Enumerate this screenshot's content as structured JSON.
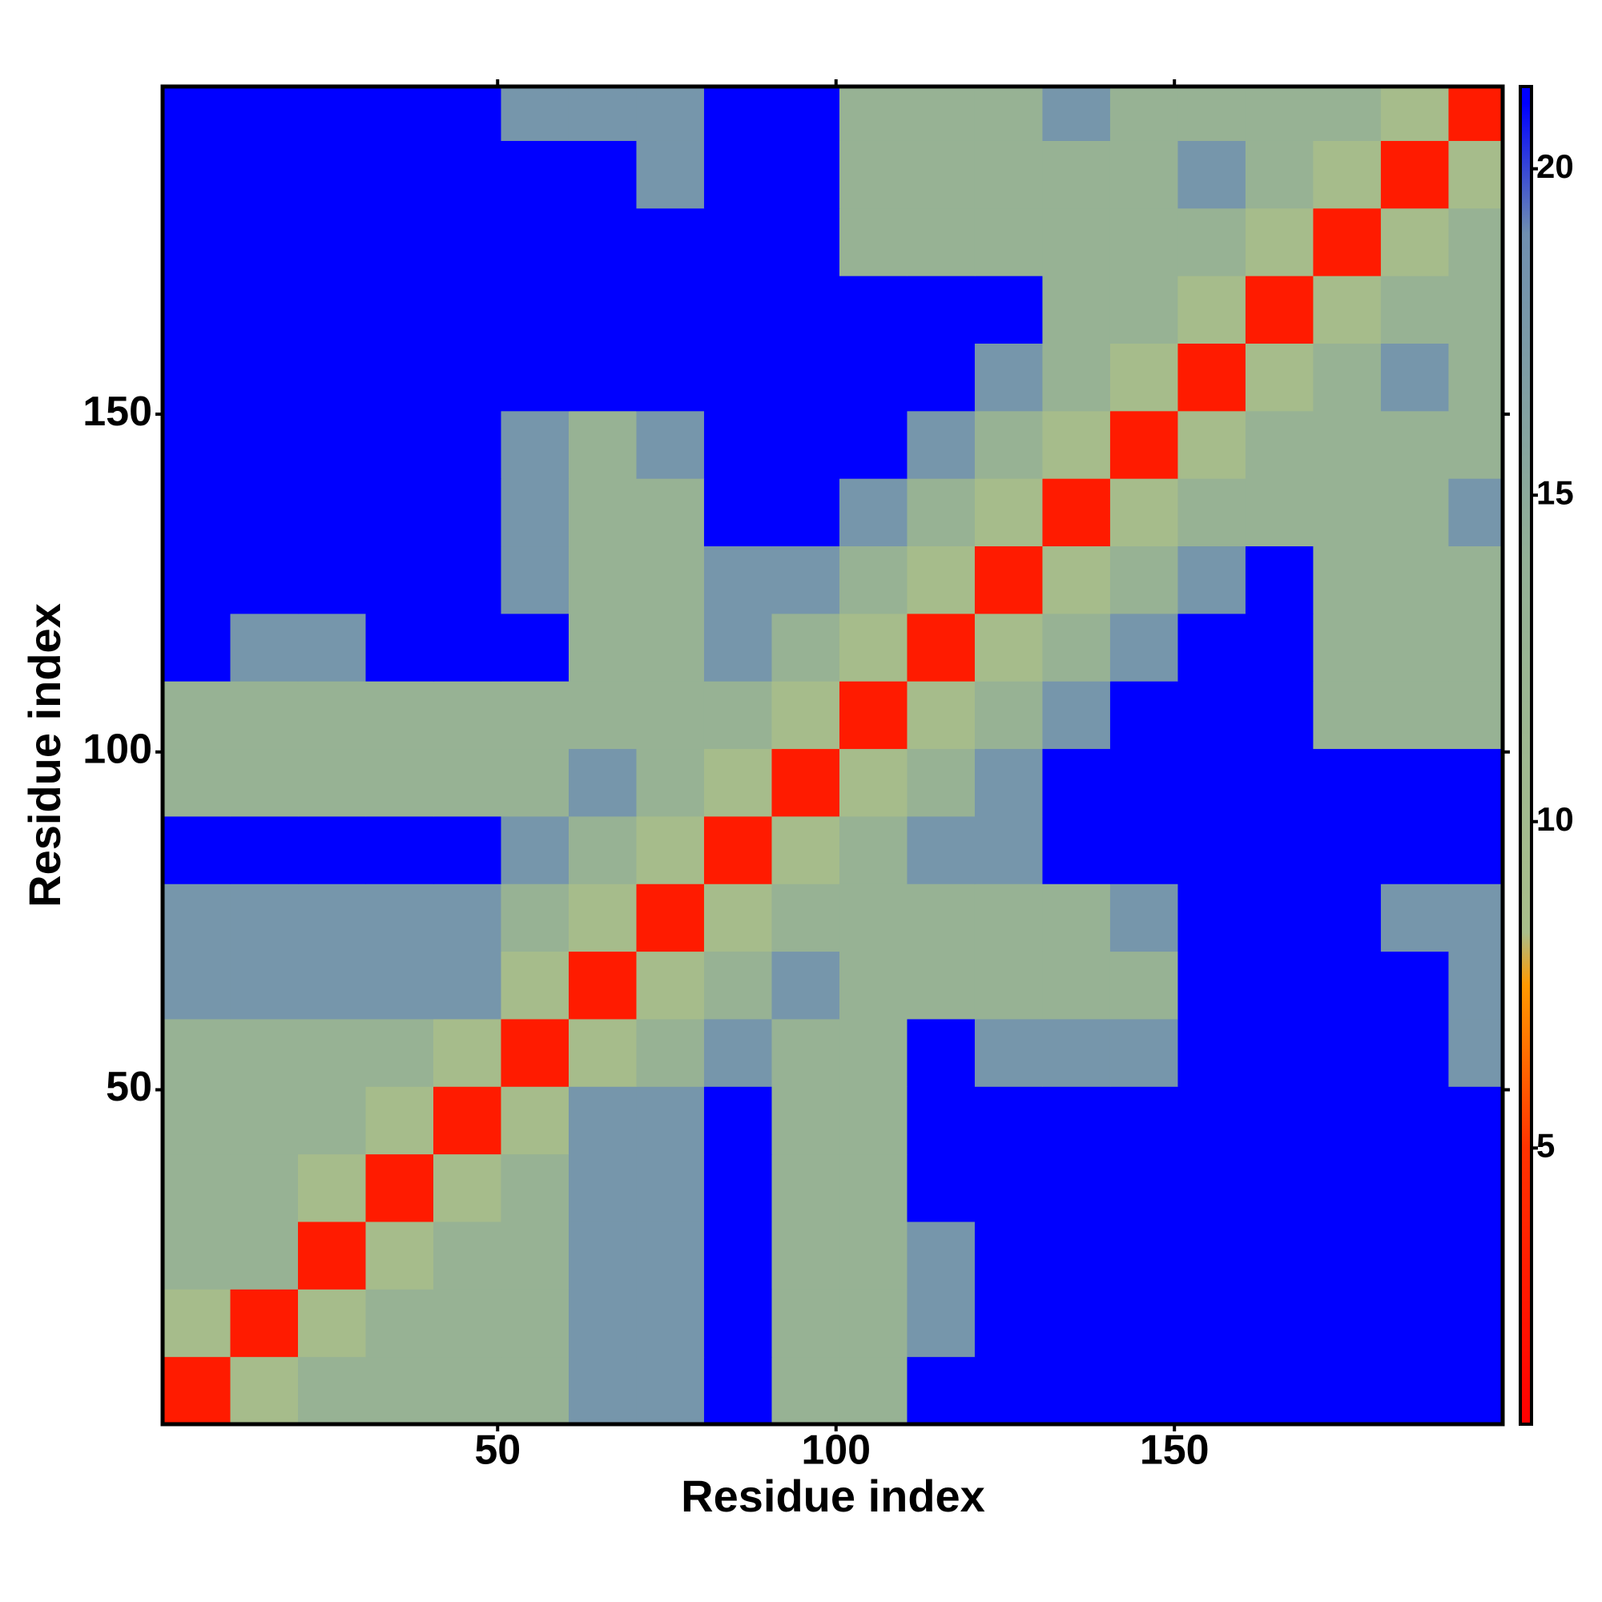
{
  "chart_data": {
    "type": "heatmap",
    "xlabel": "Residue index",
    "ylabel": "Residue index",
    "xbins": [
      0.5,
      10.5,
      20.5,
      30.5,
      40.5,
      50.5,
      60.5,
      70.5,
      80.5,
      90.5,
      100.5,
      110.5,
      120.5,
      130.5,
      140.5,
      150.5,
      160.5,
      170.5,
      180.5,
      190.5,
      198.5
    ],
    "ybins": [
      0.5,
      10.5,
      20.5,
      30.5,
      40.5,
      50.5,
      60.5,
      70.5,
      80.5,
      90.5,
      100.5,
      110.5,
      120.5,
      130.5,
      140.5,
      150.5,
      160.5,
      170.5,
      180.5,
      190.5,
      198.5
    ],
    "xlim": [
      0.5,
      198.5
    ],
    "ylim": [
      0.5,
      198.5
    ],
    "xticks": [
      50,
      100,
      150
    ],
    "yticks": [
      50,
      100,
      150
    ],
    "clim": [
      0.77,
      21.26
    ],
    "cticks": [
      5,
      10,
      15,
      20
    ],
    "colorscale": [
      [
        0.77,
        "#ff0000"
      ],
      [
        5,
        "#ff3300"
      ],
      [
        7.5,
        "#ff9900"
      ],
      [
        8.3,
        "#a9be8a"
      ],
      [
        14,
        "#93b096"
      ],
      [
        19,
        "#6f8fb0"
      ],
      [
        21,
        "#0000ff"
      ]
    ],
    "values": [
      [
        3,
        9,
        13,
        13,
        13,
        13,
        18,
        18,
        21,
        13,
        13,
        21,
        21,
        21,
        21,
        21,
        21,
        21,
        21,
        21
      ],
      [
        9,
        3,
        9,
        13,
        13,
        13,
        18,
        18,
        21,
        13,
        13,
        18,
        21,
        21,
        21,
        21,
        21,
        21,
        21,
        21
      ],
      [
        13,
        13,
        3,
        9,
        13,
        13,
        18,
        18,
        21,
        13,
        13,
        18,
        21,
        21,
        21,
        21,
        21,
        21,
        21,
        21
      ],
      [
        13,
        13,
        9,
        3,
        9,
        13,
        18,
        18,
        21,
        13,
        13,
        21,
        21,
        21,
        21,
        21,
        21,
        21,
        21,
        21
      ],
      [
        13,
        13,
        13,
        9,
        3,
        9,
        18,
        18,
        21,
        13,
        13,
        21,
        21,
        21,
        21,
        21,
        21,
        21,
        21,
        21
      ],
      [
        13,
        13,
        13,
        13,
        9,
        3,
        9,
        13,
        18,
        13,
        13,
        21,
        18,
        18,
        18,
        21,
        21,
        21,
        21,
        18
      ],
      [
        18,
        18,
        18,
        18,
        18,
        9,
        3,
        9,
        13,
        18,
        13,
        13,
        13,
        13,
        13,
        21,
        21,
        21,
        21,
        18
      ],
      [
        18,
        18,
        18,
        18,
        18,
        13,
        9,
        3,
        9,
        13,
        13,
        13,
        13,
        13,
        18,
        21,
        21,
        21,
        18,
        18
      ],
      [
        21,
        21,
        21,
        21,
        21,
        18,
        13,
        9,
        3,
        9,
        13,
        18,
        18,
        21,
        21,
        21,
        21,
        21,
        21,
        21
      ],
      [
        13,
        13,
        13,
        13,
        13,
        13,
        18,
        13,
        9,
        3,
        9,
        13,
        18,
        21,
        21,
        21,
        21,
        21,
        21,
        21
      ],
      [
        13,
        13,
        13,
        13,
        13,
        13,
        13,
        13,
        13,
        9,
        3,
        9,
        13,
        18,
        21,
        21,
        21,
        13,
        13,
        13
      ],
      [
        21,
        18,
        18,
        21,
        21,
        21,
        13,
        13,
        18,
        13,
        9,
        3,
        9,
        13,
        18,
        21,
        21,
        13,
        13,
        13
      ],
      [
        21,
        21,
        21,
        21,
        21,
        18,
        13,
        13,
        18,
        18,
        13,
        9,
        3,
        9,
        13,
        18,
        21,
        13,
        13,
        13
      ],
      [
        21,
        21,
        21,
        21,
        21,
        18,
        13,
        13,
        21,
        21,
        18,
        13,
        9,
        3,
        9,
        13,
        13,
        13,
        13,
        18
      ],
      [
        21,
        21,
        21,
        21,
        21,
        18,
        13,
        18,
        21,
        21,
        21,
        18,
        13,
        9,
        3,
        9,
        13,
        13,
        13,
        13
      ],
      [
        21,
        21,
        21,
        21,
        21,
        21,
        21,
        21,
        21,
        21,
        21,
        21,
        18,
        13,
        9,
        3,
        9,
        13,
        18,
        13
      ],
      [
        21,
        21,
        21,
        21,
        21,
        21,
        21,
        21,
        21,
        21,
        21,
        21,
        21,
        13,
        13,
        9,
        3,
        9,
        13,
        13
      ],
      [
        21,
        21,
        21,
        21,
        21,
        21,
        21,
        21,
        21,
        21,
        13,
        13,
        13,
        13,
        13,
        13,
        9,
        3,
        9,
        13
      ],
      [
        21,
        21,
        21,
        21,
        21,
        21,
        21,
        18,
        21,
        21,
        13,
        13,
        13,
        13,
        13,
        18,
        13,
        9,
        3,
        9
      ],
      [
        21,
        21,
        21,
        21,
        21,
        18,
        18,
        18,
        21,
        21,
        13,
        13,
        13,
        18,
        13,
        13,
        13,
        13,
        9,
        3
      ]
    ]
  }
}
